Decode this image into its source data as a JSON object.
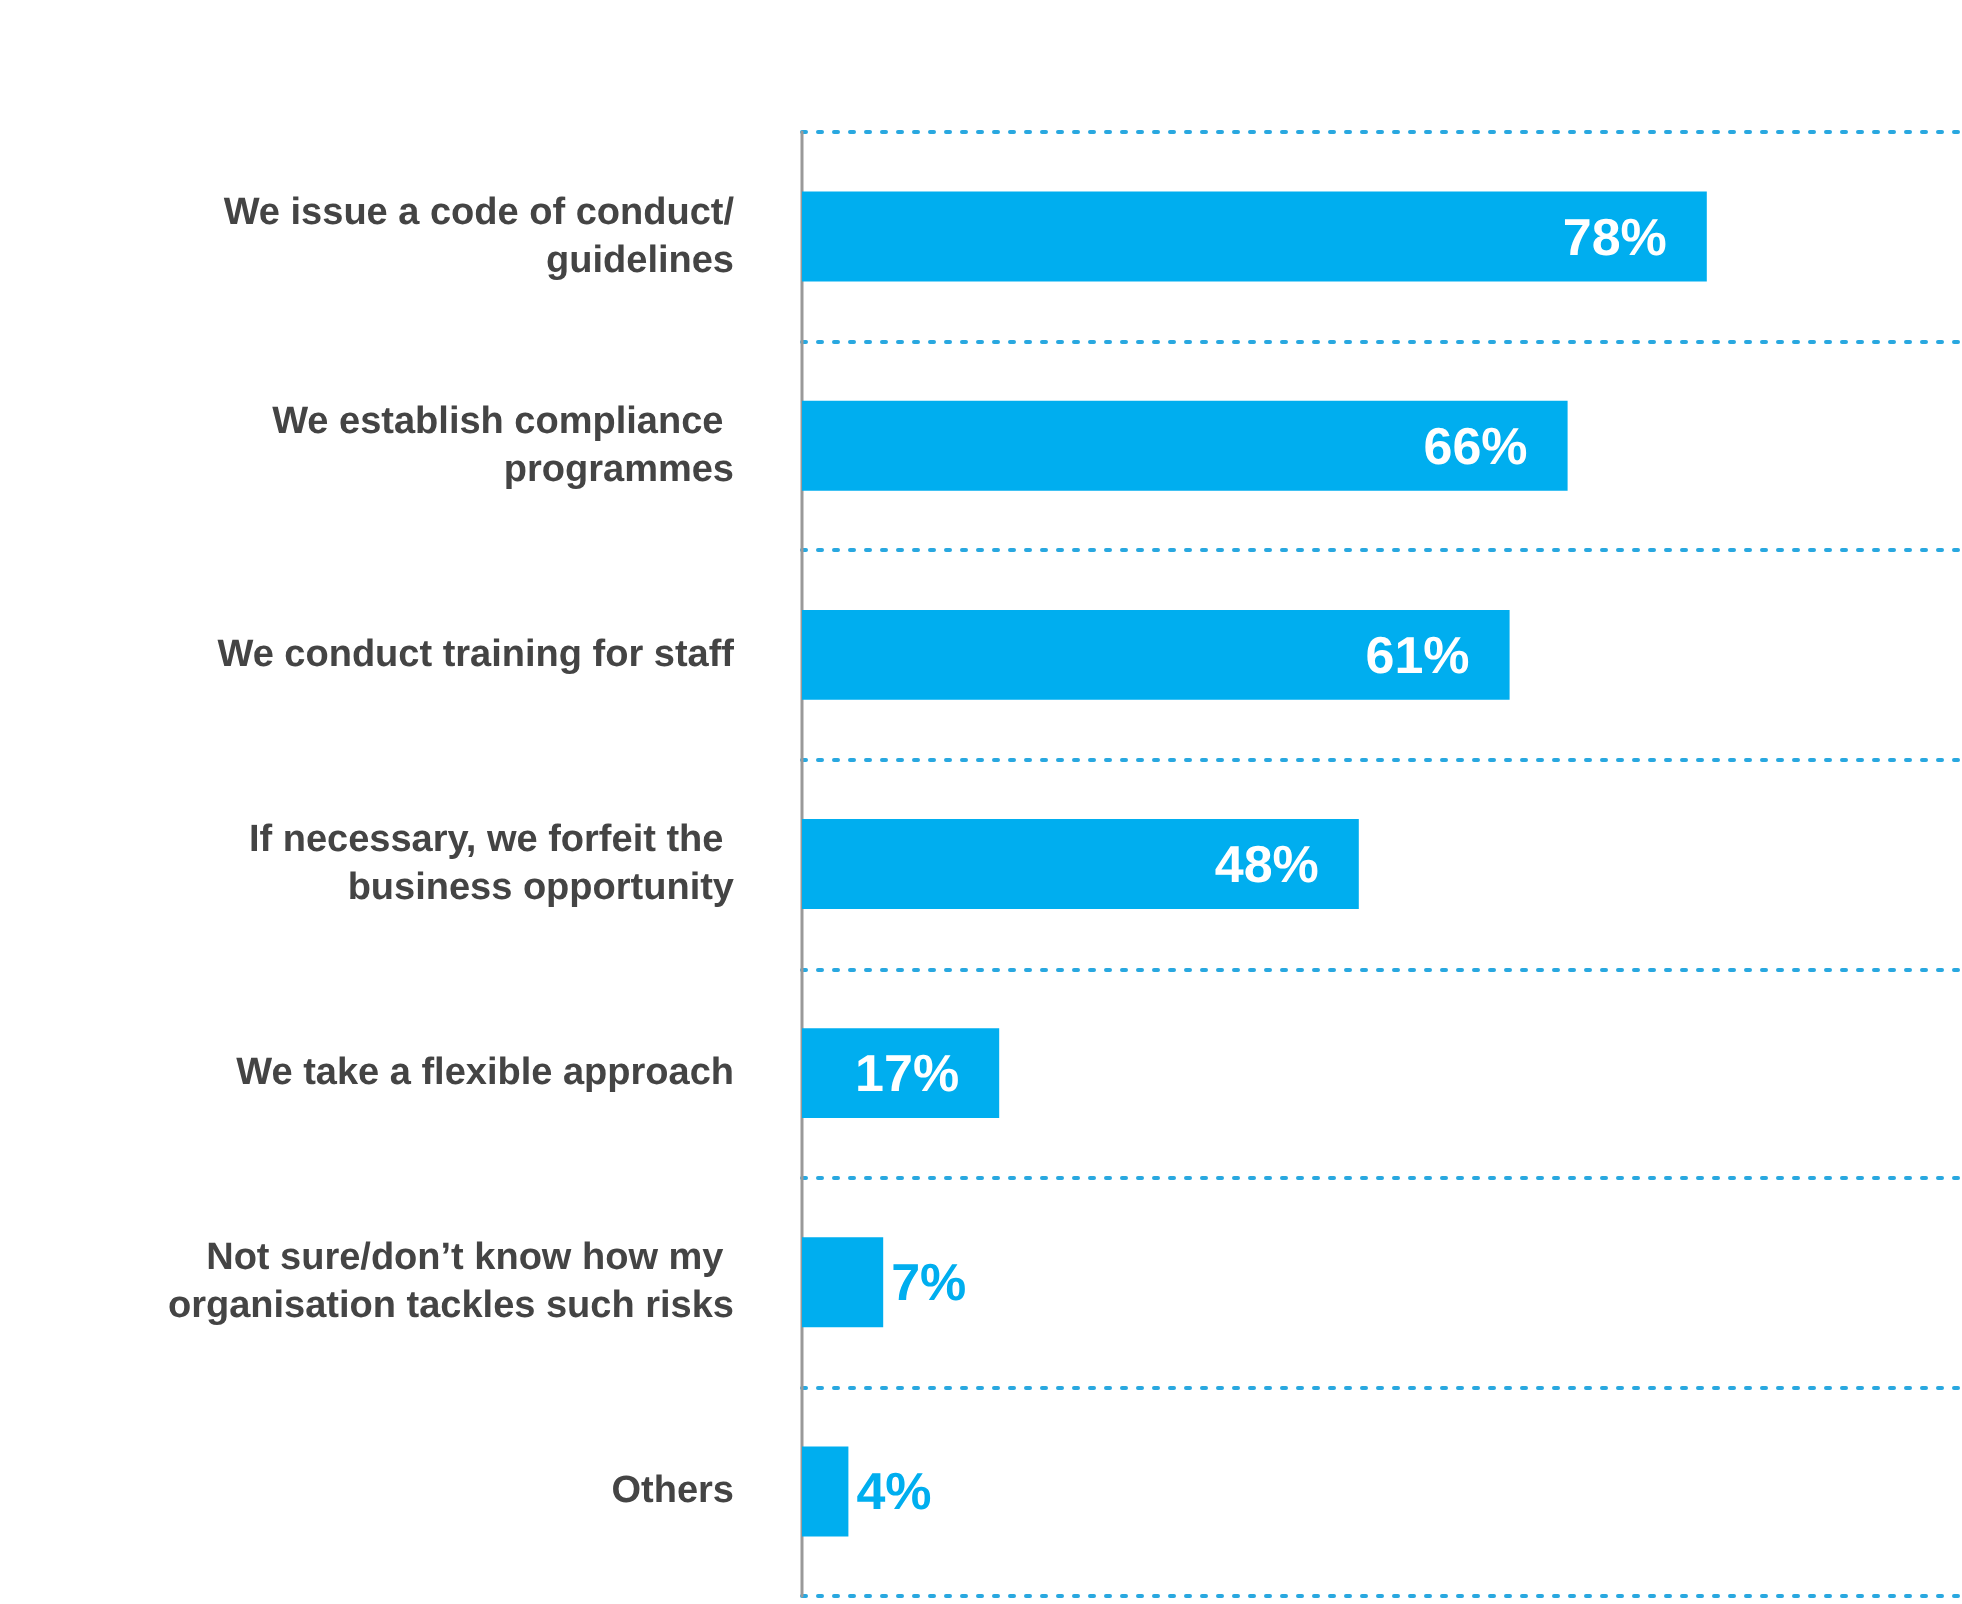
{
  "chart_data": {
    "type": "bar",
    "orientation": "horizontal",
    "categories": [
      "We issue a code of conduct/guidelines",
      "We establish compliance programmes",
      "We conduct training for staff",
      "If necessary, we forfeit the business opportunity",
      "We take a flexible approach",
      "Not sure/don’t know how my organisation tackles such risks",
      "Others"
    ],
    "values": [
      78,
      66,
      61,
      48,
      17,
      7,
      4
    ],
    "value_labels": [
      "78%",
      "66%",
      "61%",
      "48%",
      "17%",
      "7%",
      "4%"
    ],
    "color": "#00aeef",
    "xlim": [
      0,
      100
    ],
    "grid": "y"
  }
}
